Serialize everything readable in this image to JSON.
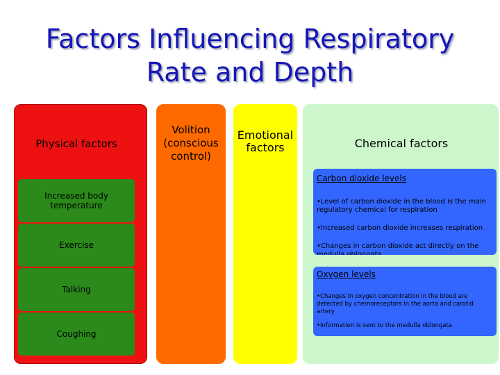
{
  "title": {
    "line1": "Factors Influencing Respiratory",
    "line2": "Rate and Depth"
  },
  "columns": {
    "physical": {
      "heading": "Physical factors",
      "items": [
        "Increased body temperature",
        "Exercise",
        "Talking",
        "Coughing"
      ]
    },
    "volition": {
      "heading_lines": [
        "Volition",
        "(conscious",
        "control)"
      ]
    },
    "emotional": {
      "heading_lines": [
        "Emotional",
        "factors"
      ]
    },
    "chemical": {
      "heading": "Chemical factors",
      "carbon_dioxide": {
        "heading": "Carbon dioxide levels",
        "items": [
          "•Level of carbon dioxide in the blood is the main regulatory chemical for respiration",
          "•Increased carbon dioxide increases respiration",
          "•Changes in carbon dioxide act directly on the medulla oblongata"
        ]
      },
      "oxygen": {
        "heading": "Oxygen levels",
        "items": [
          "•Changes in oxygen concentration in the blood are detected by chemoreceptors in the aorta and carotid artery",
          "•Information is sent to the medulla oblongata"
        ]
      }
    }
  },
  "colors": {
    "title": "#1515b8",
    "physical": "#ee1111",
    "volition": "#ff6a00",
    "emotional": "#ffff00",
    "chemical": "#ccf7cc",
    "physical_item": "#2b8a1a",
    "chemical_box": "#3366ff"
  }
}
